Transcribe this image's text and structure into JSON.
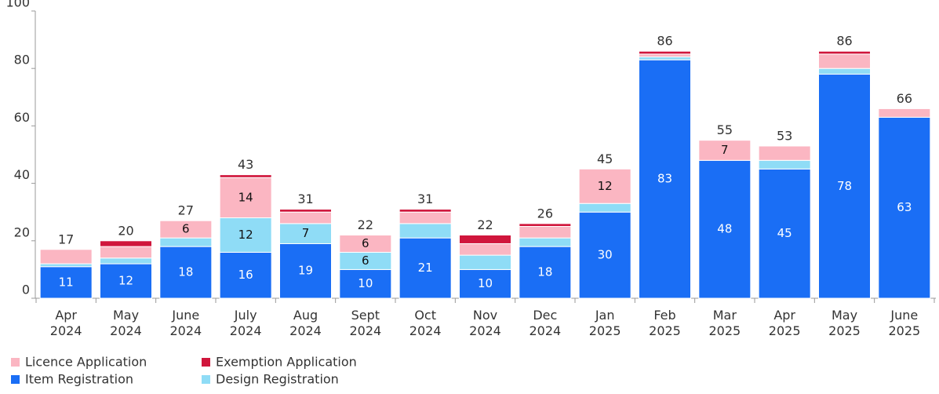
{
  "chart_data": {
    "type": "stacked_bar",
    "categories": [
      "Apr 2024",
      "May 2024",
      "June 2024",
      "July 2024",
      "Aug 2024",
      "Sept 2024",
      "Oct 2024",
      "Nov 2024",
      "Dec 2024",
      "Jan 2025",
      "Feb 2025",
      "Mar 2025",
      "Apr 2025",
      "May 2025",
      "June 2025"
    ],
    "series": [
      {
        "name": "Item Registration",
        "color": "#1a6ef5",
        "values": [
          11,
          12,
          18,
          16,
          19,
          10,
          21,
          10,
          18,
          30,
          83,
          48,
          45,
          78,
          63
        ]
      },
      {
        "name": "Design Registration",
        "color": "#8fdcf6",
        "values": [
          1,
          2,
          3,
          12,
          7,
          6,
          5,
          5,
          3,
          3,
          1,
          0,
          3,
          2,
          0
        ]
      },
      {
        "name": "Licence Application",
        "color": "#fbb6c2",
        "values": [
          5,
          4,
          6,
          14,
          4,
          6,
          4,
          4,
          4,
          12,
          1,
          7,
          5,
          5,
          3
        ]
      },
      {
        "name": "Exemption Application",
        "color": "#d0163c",
        "values": [
          0,
          2,
          0,
          1,
          1,
          0,
          1,
          3,
          1,
          0,
          1,
          0,
          0,
          1,
          0
        ]
      }
    ],
    "totals": [
      17,
      20,
      27,
      43,
      31,
      22,
      31,
      22,
      26,
      45,
      86,
      55,
      53,
      86,
      66
    ],
    "ylim": [
      0,
      100
    ],
    "yticks": [
      0,
      20,
      40,
      60,
      80,
      100
    ]
  }
}
